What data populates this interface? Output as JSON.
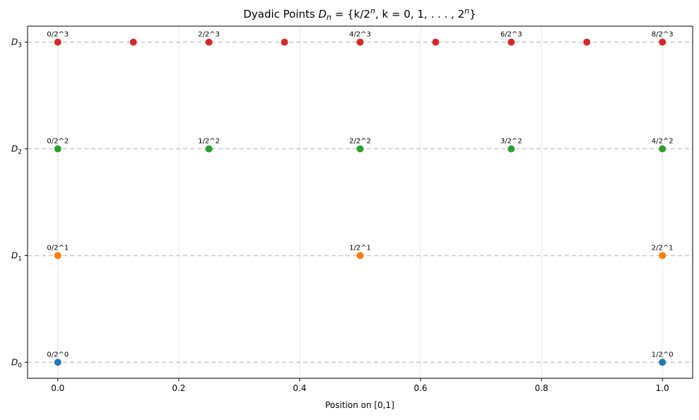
{
  "chart_data": {
    "type": "scatter",
    "title": "Dyadic Points D_n = {k/2^n, k = 0, 1, ..., 2^n}",
    "title_parts": {
      "prefix": "Dyadic Points ",
      "D": "D",
      "n": "n",
      "set_body": " = {k/2",
      "exp_n": "n",
      "set_tail": ", k = 0, 1, . . . , 2",
      "close": "}"
    },
    "xlabel": "Position on [0,1]",
    "ylabel": "",
    "xlim": [
      -0.05,
      1.05
    ],
    "ylim": [
      -0.15,
      3.15
    ],
    "xticks": [
      0.0,
      0.2,
      0.4,
      0.6,
      0.8,
      1.0
    ],
    "xtick_labels": [
      "0.0",
      "0.2",
      "0.4",
      "0.6",
      "0.8",
      "1.0"
    ],
    "yticks": [
      0,
      1,
      2,
      3
    ],
    "ytick_labels": [
      {
        "base": "D",
        "sub": "0"
      },
      {
        "base": "D",
        "sub": "1"
      },
      {
        "base": "D",
        "sub": "2"
      },
      {
        "base": "D",
        "sub": "3"
      }
    ],
    "grid": true,
    "legend": "none",
    "series": [
      {
        "level": 0,
        "color": "#1f77b4",
        "x": [
          0,
          1
        ],
        "point_labels": [
          "0/2^0",
          "1/2^0"
        ]
      },
      {
        "level": 1,
        "color": "#ff7f0e",
        "x": [
          0,
          0.5,
          1
        ],
        "point_labels": [
          "0/2^1",
          "1/2^1",
          "2/2^1"
        ]
      },
      {
        "level": 2,
        "color": "#2ca02c",
        "x": [
          0,
          0.25,
          0.5,
          0.75,
          1
        ],
        "point_labels": [
          "0/2^2",
          "1/2^2",
          "2/2^2",
          "3/2^2",
          "4/2^2"
        ]
      },
      {
        "level": 3,
        "color": "#d62728",
        "x": [
          0,
          0.125,
          0.25,
          0.375,
          0.5,
          0.625,
          0.75,
          0.875,
          1
        ],
        "point_labels": [
          "0/2^3",
          "",
          "2/2^3",
          "",
          "4/2^3",
          "",
          "6/2^3",
          "",
          "8/2^3"
        ]
      }
    ]
  }
}
